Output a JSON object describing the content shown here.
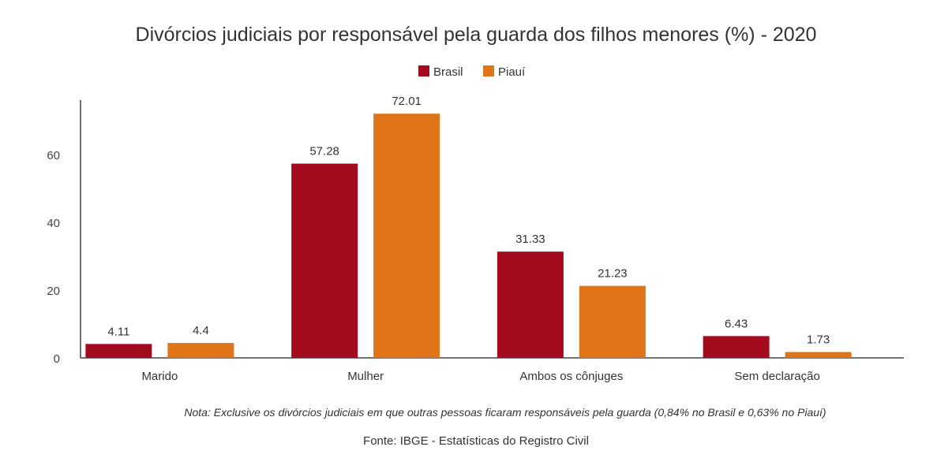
{
  "chart_data": {
    "type": "bar",
    "title": "Divórcios judiciais por responsável pela guarda dos filhos menores (%) - 2020",
    "categories": [
      "Marido",
      "Mulher",
      "Ambos os cônjuges",
      "Sem declaração"
    ],
    "series": [
      {
        "name": "Brasil",
        "color": "#a50b1e",
        "values": [
          4.11,
          57.28,
          31.33,
          6.43
        ],
        "labels": [
          "4.11",
          "57.28",
          "31.33",
          "6.43"
        ]
      },
      {
        "name": "Piauí",
        "color": "#e07418",
        "values": [
          4.4,
          72.01,
          21.23,
          1.73
        ],
        "labels": [
          "4.4",
          "72.01",
          "21.23",
          "1.73"
        ]
      }
    ],
    "yticks": [
      0,
      20,
      40,
      60
    ],
    "ylim": [
      0,
      76
    ],
    "xlabel": "",
    "ylabel": "",
    "legend": "top-center",
    "grid": false,
    "note": "Nota: Exclusive os divórcios judiciais em que outras pessoas ficaram responsáveis pela guarda (0,84% no Brasil e 0,63% no Piauí)",
    "source": "Fonte: IBGE - Estatísticas do Registro Civil"
  }
}
